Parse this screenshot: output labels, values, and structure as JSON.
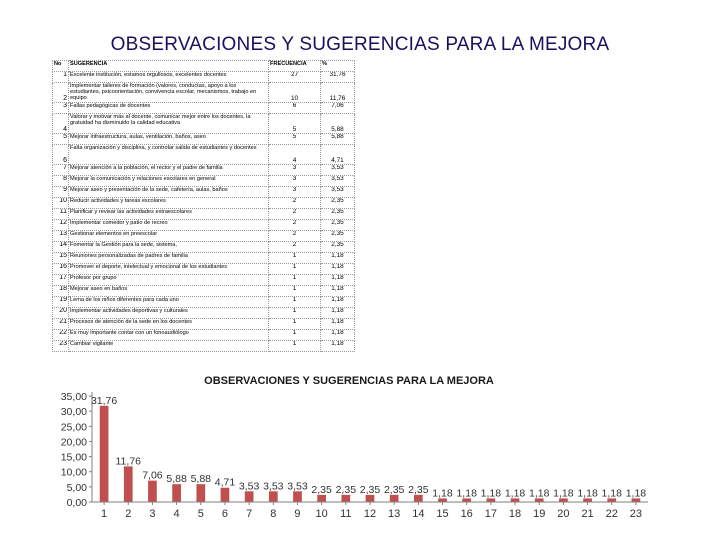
{
  "title": "OBSERVACIONES Y SUGERENCIAS PARA LA MEJORA",
  "table": {
    "headers": {
      "no": "No",
      "sugerencia": "SUGERENCIA",
      "frecuencia": "FRECUENCIA",
      "pct": "%"
    },
    "rows": [
      {
        "no": "1",
        "text": "Excelente institución, estamos orgullosos, excelentes docentes",
        "freq": "27",
        "pct": "31,76"
      },
      {
        "no": "2",
        "text": "Implementar talleres de formación (valores, conductas, apoyo a los estudiantes, psicoorientación, convivencia escolar, mecanismos, trabajo en equipo",
        "freq": "10",
        "pct": "11,76"
      },
      {
        "no": "3",
        "text": "Fallas pedagógicas de docentes",
        "freq": "6",
        "pct": "7,06"
      },
      {
        "no": "4",
        "text": "Valorar y motivar más al docente, comunicar mejor entre los docentes, la gratuidad ha disminuido la calidad educativa",
        "freq": "5",
        "pct": "5,88"
      },
      {
        "no": "5",
        "text": "Mejorar infraestructura, aulas, ventilación, baños, aseo",
        "freq": "5",
        "pct": "5,88"
      },
      {
        "no": "6",
        "text": "Falta organización y disciplina, y controlar salida de estudiantes y docentes",
        "freq": "4",
        "pct": "4,71"
      },
      {
        "no": "7",
        "text": "Mejorar atención a la población, el rector y el padre de familia",
        "freq": "3",
        "pct": "3,53"
      },
      {
        "no": "8",
        "text": "Mejorar la comunicación y relaciones escolares en general",
        "freq": "3",
        "pct": "3,53"
      },
      {
        "no": "9",
        "text": "Mejorar aseo y presentación de la sede, cafetería, aulas, baños",
        "freq": "3",
        "pct": "3,53"
      },
      {
        "no": "10",
        "text": "Reducir actividades y tareas escolares",
        "freq": "2",
        "pct": "2,35"
      },
      {
        "no": "11",
        "text": "Planificar y revisar las actividades extraescolares",
        "freq": "2",
        "pct": "2,35"
      },
      {
        "no": "12",
        "text": "Implementar comedor y patio de recreo",
        "freq": "2",
        "pct": "2,35"
      },
      {
        "no": "13",
        "text": "Gestionar elementos en preescolar",
        "freq": "2",
        "pct": "2,35"
      },
      {
        "no": "14",
        "text": "Fomentar la Gestión para la sede, sistema,",
        "freq": "2",
        "pct": "2,35"
      },
      {
        "no": "15",
        "text": "Reuniones personalizadas de padres de familia",
        "freq": "1",
        "pct": "1,18"
      },
      {
        "no": "16",
        "text": "Promover el deporte, intelectual y emocional de los estudiantes",
        "freq": "1",
        "pct": "1,18"
      },
      {
        "no": "17",
        "text": "Profesor por grupo",
        "freq": "1",
        "pct": "1,18"
      },
      {
        "no": "18",
        "text": "Mejorar aseo en baños",
        "freq": "1",
        "pct": "1,18"
      },
      {
        "no": "19",
        "text": "Lema de los niños diferentes para cada uno",
        "freq": "1",
        "pct": "1,18"
      },
      {
        "no": "20",
        "text": "Implementar actividades deportivas y culturales",
        "freq": "1",
        "pct": "1,18"
      },
      {
        "no": "21",
        "text": "Procesos de atención de la sede en los docentes",
        "freq": "1",
        "pct": "1,18"
      },
      {
        "no": "22",
        "text": "Es muy importante contar con un fonoaudiólogo",
        "freq": "1",
        "pct": "1,18"
      },
      {
        "no": "23",
        "text": "Cambiar vigilante",
        "freq": "1",
        "pct": "1,18"
      }
    ]
  },
  "chart_data": {
    "type": "bar",
    "title": "OBSERVACIONES Y SUGERENCIAS PARA LA MEJORA",
    "categories": [
      "1",
      "2",
      "3",
      "4",
      "5",
      "6",
      "7",
      "8",
      "9",
      "10",
      "11",
      "12",
      "13",
      "14",
      "15",
      "16",
      "17",
      "18",
      "19",
      "20",
      "21",
      "22",
      "23"
    ],
    "values": [
      31.76,
      11.76,
      7.06,
      5.88,
      5.88,
      4.71,
      3.53,
      3.53,
      3.53,
      2.35,
      2.35,
      2.35,
      2.35,
      2.35,
      1.18,
      1.18,
      1.18,
      1.18,
      1.18,
      1.18,
      1.18,
      1.18,
      1.18
    ],
    "value_labels": [
      "31,76",
      "11,76",
      "7,06",
      "5,88",
      "5,88",
      "4,71",
      "3,53",
      "3,53",
      "3,53",
      "2,35",
      "2,35",
      "2,35",
      "2,35",
      "2,35",
      "1,18",
      "1,18",
      "1,18",
      "1,18",
      "1,18",
      "1,18",
      "1,18",
      "1,18",
      "1,18"
    ],
    "ylim": [
      0,
      35
    ],
    "yticks": [
      0,
      5,
      10,
      15,
      20,
      25,
      30,
      35
    ],
    "ytick_labels": [
      "0,00",
      "5,00",
      "10,00",
      "15,00",
      "20,00",
      "25,00",
      "30,00",
      "35,00"
    ],
    "bar_color": "#c0504d",
    "grid": false,
    "xlabel": "",
    "ylabel": ""
  }
}
